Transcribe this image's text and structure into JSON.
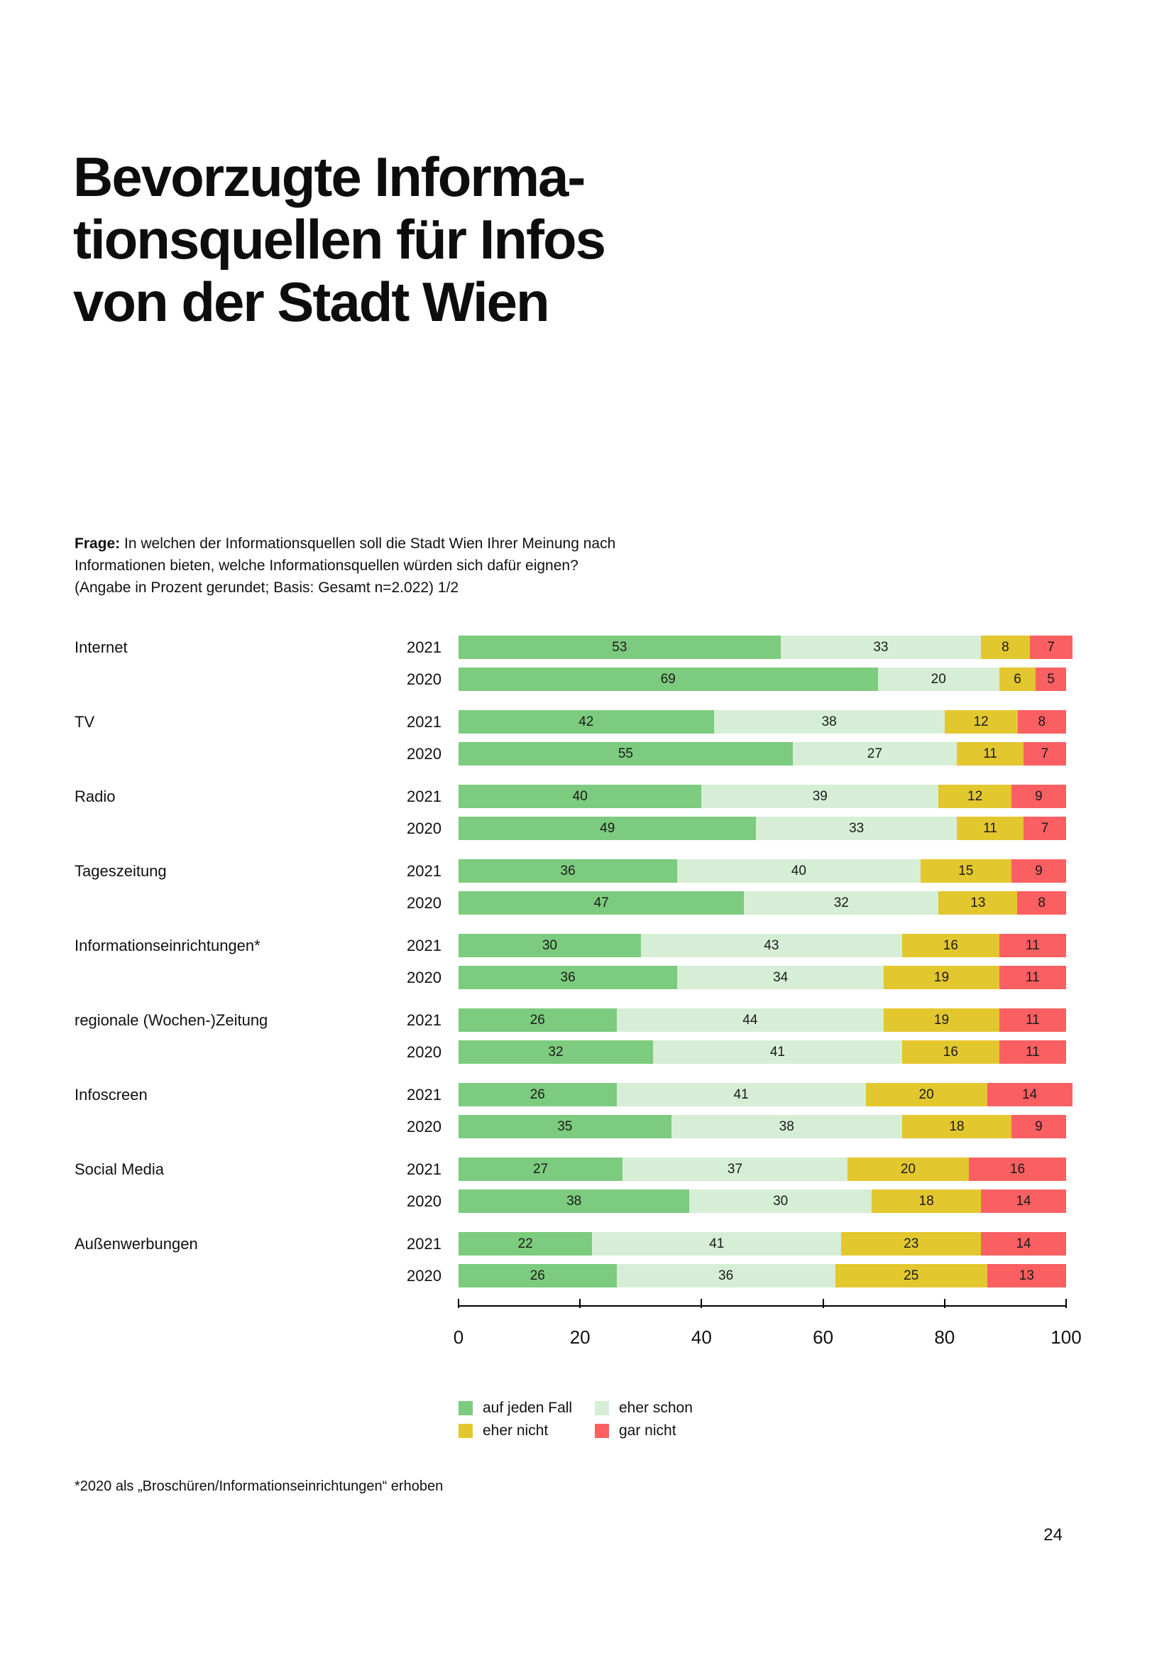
{
  "page": {
    "number": "24"
  },
  "title": {
    "lines": [
      "Bevorzugte Informa-",
      "tionsquellen für Infos",
      "von der Stadt Wien"
    ]
  },
  "question": {
    "label": "Frage:",
    "line1_rest": " In welchen der Informationsquellen soll die Stadt Wien Ihrer Meinung nach",
    "line2": "Informationen bieten, welche Informationsquellen würden sich dafür eignen?",
    "line3": "(Angabe in Prozent gerundet; Basis: Gesamt n=2.022) 1/2"
  },
  "footnote": "*2020 als „Broschüren/Informationseinrichtungen“ erhoben",
  "chart_data": {
    "type": "bar",
    "orientation": "horizontal",
    "stacked": true,
    "unit": "percent",
    "title": "Bevorzugte Informationsquellen für Infos von der Stadt Wien",
    "xlim": [
      0,
      100
    ],
    "axis_ticks": [
      0,
      20,
      40,
      60,
      80,
      100
    ],
    "legend_position": "bottom",
    "legend": [
      {
        "name": "auf jeden Fall",
        "color": "#7ccb7e"
      },
      {
        "name": "eher schon",
        "color": "#d6eed5"
      },
      {
        "name": "eher nicht",
        "color": "#e3c72f"
      },
      {
        "name": "gar nicht",
        "color": "#fa5f62"
      }
    ],
    "categories": [
      {
        "label": "Internet",
        "series": [
          {
            "year": "2021",
            "values": [
              53,
              33,
              8,
              7
            ]
          },
          {
            "year": "2020",
            "values": [
              69,
              20,
              6,
              5
            ]
          }
        ]
      },
      {
        "label": "TV",
        "series": [
          {
            "year": "2021",
            "values": [
              42,
              38,
              12,
              8
            ]
          },
          {
            "year": "2020",
            "values": [
              55,
              27,
              11,
              7
            ]
          }
        ]
      },
      {
        "label": "Radio",
        "series": [
          {
            "year": "2021",
            "values": [
              40,
              39,
              12,
              9
            ]
          },
          {
            "year": "2020",
            "values": [
              49,
              33,
              11,
              7
            ]
          }
        ]
      },
      {
        "label": "Tageszeitung",
        "series": [
          {
            "year": "2021",
            "values": [
              36,
              40,
              15,
              9
            ]
          },
          {
            "year": "2020",
            "values": [
              47,
              32,
              13,
              8
            ]
          }
        ]
      },
      {
        "label": "Informationseinrichtungen*",
        "series": [
          {
            "year": "2021",
            "values": [
              30,
              43,
              16,
              11
            ]
          },
          {
            "year": "2020",
            "values": [
              36,
              34,
              19,
              11
            ]
          }
        ]
      },
      {
        "label": "regionale (Wochen-)Zeitung",
        "series": [
          {
            "year": "2021",
            "values": [
              26,
              44,
              19,
              11
            ]
          },
          {
            "year": "2020",
            "values": [
              32,
              41,
              16,
              11
            ]
          }
        ]
      },
      {
        "label": "Infoscreen",
        "series": [
          {
            "year": "2021",
            "values": [
              26,
              41,
              20,
              14
            ]
          },
          {
            "year": "2020",
            "values": [
              35,
              38,
              18,
              9
            ]
          }
        ]
      },
      {
        "label": "Social Media",
        "series": [
          {
            "year": "2021",
            "values": [
              27,
              37,
              20,
              16
            ]
          },
          {
            "year": "2020",
            "values": [
              38,
              30,
              18,
              14
            ]
          }
        ]
      },
      {
        "label": "Außenwerbungen",
        "series": [
          {
            "year": "2021",
            "values": [
              22,
              41,
              23,
              14
            ]
          },
          {
            "year": "2020",
            "values": [
              26,
              36,
              25,
              13
            ]
          }
        ]
      }
    ]
  }
}
